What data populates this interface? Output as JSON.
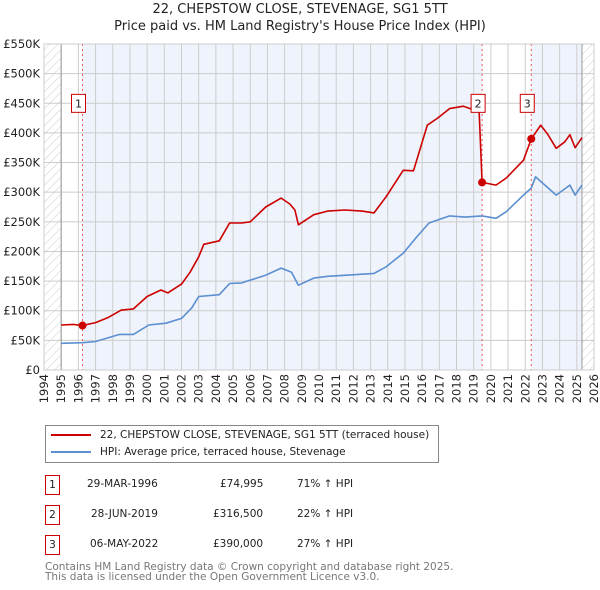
{
  "title": "22, CHEPSTOW CLOSE, STEVENAGE, SG1 5TT",
  "subtitle": "Price paid vs. HM Land Registry's House Price Index (HPI)",
  "chart_data": {
    "type": "line",
    "xlim": [
      1994,
      2026
    ],
    "ylim": [
      0,
      550000
    ],
    "x_ticks": [
      "1994",
      "1995",
      "1996",
      "1997",
      "1998",
      "1999",
      "2000",
      "2001",
      "2002",
      "2003",
      "2004",
      "2005",
      "2006",
      "2007",
      "2008",
      "2009",
      "2010",
      "2011",
      "2012",
      "2013",
      "2014",
      "2015",
      "2016",
      "2017",
      "2018",
      "2019",
      "2020",
      "2021",
      "2022",
      "2023",
      "2024",
      "2025",
      "2026"
    ],
    "y_ticks": [
      {
        "v": 0,
        "label": "£0"
      },
      {
        "v": 50000,
        "label": "£50K"
      },
      {
        "v": 100000,
        "label": "£100K"
      },
      {
        "v": 150000,
        "label": "£150K"
      },
      {
        "v": 200000,
        "label": "£200K"
      },
      {
        "v": 250000,
        "label": "£250K"
      },
      {
        "v": 300000,
        "label": "£300K"
      },
      {
        "v": 350000,
        "label": "£350K"
      },
      {
        "v": 400000,
        "label": "£400K"
      },
      {
        "v": 450000,
        "label": "£450K"
      },
      {
        "v": 500000,
        "label": "£500K"
      },
      {
        "v": 550000,
        "label": "£550K"
      }
    ],
    "grid": true,
    "data_range": [
      1995.0,
      2025.3
    ],
    "series": [
      {
        "name": "22, CHEPSTOW CLOSE, STEVENAGE, SG1 5TT (terraced house)",
        "color": "#cc0000",
        "x": [
          1995.0,
          1995.7,
          1996.24,
          1997.0,
          1997.7,
          1998.5,
          1999.2,
          2000.0,
          2000.8,
          2001.2,
          2002.0,
          2002.5,
          2003.0,
          2003.3,
          2004.2,
          2004.8,
          2005.5,
          2006.0,
          2006.9,
          2007.8,
          2008.3,
          2008.6,
          2008.8,
          2009.7,
          2010.5,
          2011.5,
          2012.5,
          2013.2,
          2013.9,
          2014.9,
          2015.5,
          2016.3,
          2016.9,
          2017.6,
          2018.4,
          2018.9,
          2019.3,
          2019.49,
          2020.3,
          2020.9,
          2021.9,
          2022.35,
          2022.9,
          2023.3,
          2023.8,
          2024.3,
          2024.6,
          2024.9,
          2025.3
        ],
        "y": [
          76000,
          77000,
          74995,
          80000,
          88000,
          101000,
          103000,
          124000,
          135000,
          130000,
          145000,
          165000,
          191000,
          212000,
          218000,
          248000,
          248000,
          250000,
          275000,
          290000,
          280000,
          270000,
          245000,
          262000,
          268000,
          270000,
          268000,
          265000,
          292000,
          337000,
          336000,
          413000,
          425000,
          441000,
          445000,
          440000,
          450000,
          316500,
          312000,
          324000,
          354000,
          390000,
          413000,
          398000,
          374000,
          385000,
          397000,
          375000,
          392000
        ]
      },
      {
        "name": "HPI: Average price, terraced house, Stevenage",
        "color": "#5b8fd0",
        "x": [
          1995.0,
          1996.24,
          1997.0,
          1998.4,
          1999.2,
          2000.1,
          2001.1,
          2002.0,
          2002.6,
          2003.0,
          2004.2,
          2004.8,
          2005.5,
          2006.9,
          2007.8,
          2008.4,
          2008.8,
          2009.7,
          2010.5,
          2011.6,
          2013.2,
          2013.9,
          2014.9,
          2015.7,
          2016.4,
          2017.6,
          2018.5,
          2019.49,
          2020.3,
          2020.9,
          2021.9,
          2022.35,
          2022.6,
          2023.1,
          2023.8,
          2024.6,
          2024.9,
          2025.3
        ],
        "y": [
          45000,
          46000,
          48000,
          60000,
          60000,
          76000,
          79000,
          87000,
          105000,
          124000,
          127000,
          146000,
          147000,
          160000,
          172000,
          165000,
          143000,
          155000,
          158000,
          160000,
          163000,
          174000,
          197000,
          225000,
          248000,
          260000,
          258000,
          260000,
          256000,
          267000,
          295000,
          307000,
          326000,
          313000,
          295000,
          312000,
          295000,
          312000
        ]
      }
    ],
    "sales": [
      {
        "id": "1",
        "x": 1996.24,
        "y": 74995
      },
      {
        "id": "2",
        "x": 2019.49,
        "y": 316500
      },
      {
        "id": "3",
        "x": 2022.35,
        "y": 390000
      }
    ]
  },
  "legend": {
    "property": "22, CHEPSTOW CLOSE, STEVENAGE, SG1 5TT (terraced house)",
    "hpi": "HPI: Average price, terraced house, Stevenage"
  },
  "transactions": [
    {
      "id": "1",
      "date": "29-MAR-1996",
      "price": "£74,995",
      "hpi": "71% ↑ HPI"
    },
    {
      "id": "2",
      "date": "28-JUN-2019",
      "price": "£316,500",
      "hpi": "22% ↑ HPI"
    },
    {
      "id": "3",
      "date": "06-MAY-2022",
      "price": "£390,000",
      "hpi": "27% ↑ HPI"
    }
  ],
  "footer": {
    "line1": "Contains HM Land Registry data © Crown copyright and database right 2025.",
    "line2": "This data is licensed under the Open Government Licence v3.0."
  }
}
